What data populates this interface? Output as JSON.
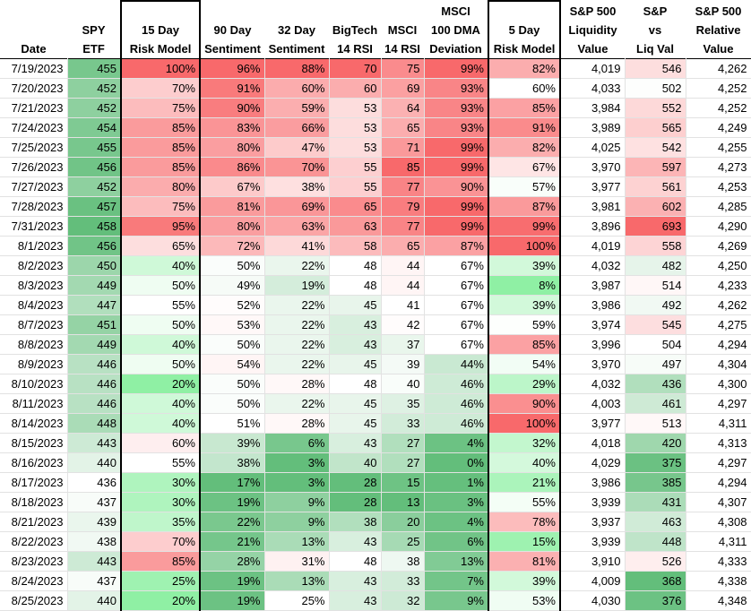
{
  "headers": [
    [
      "",
      "Date"
    ],
    [
      "SPY",
      "ETF"
    ],
    [
      "15 Day",
      "Risk Model"
    ],
    [
      "90 Day",
      "Sentiment"
    ],
    [
      "32 Day",
      "Sentiment"
    ],
    [
      "BigTech",
      "14 RSI"
    ],
    [
      "MSCI",
      "14 RSI"
    ],
    [
      "MSCI",
      "100 DMA",
      "Deviation"
    ],
    [
      "5 Day",
      "Risk Model"
    ],
    [
      "S&P 500",
      "Liquidity",
      "Value"
    ],
    [
      "S&P",
      "vs",
      "Liq Val"
    ],
    [
      "S&P 500",
      "Relative",
      "Value"
    ]
  ],
  "rows": [
    {
      "date": "7/19/2023",
      "spy": 455,
      "r15": "100%",
      "s90": "96%",
      "s32": "88%",
      "bt": 70,
      "msci": 75,
      "dev": "99%",
      "r5": "82%",
      "liq": "4,019",
      "vs": 546,
      "rel": "4,262"
    },
    {
      "date": "7/20/2023",
      "spy": 452,
      "r15": "70%",
      "s90": "91%",
      "s32": "60%",
      "bt": 60,
      "msci": 69,
      "dev": "93%",
      "r5": "60%",
      "liq": "4,033",
      "vs": 502,
      "rel": "4,252"
    },
    {
      "date": "7/21/2023",
      "spy": 452,
      "r15": "75%",
      "s90": "90%",
      "s32": "59%",
      "bt": 53,
      "msci": 64,
      "dev": "93%",
      "r5": "85%",
      "liq": "3,984",
      "vs": 552,
      "rel": "4,252"
    },
    {
      "date": "7/24/2023",
      "spy": 454,
      "r15": "85%",
      "s90": "83%",
      "s32": "66%",
      "bt": 53,
      "msci": 65,
      "dev": "93%",
      "r5": "91%",
      "liq": "3,989",
      "vs": 565,
      "rel": "4,249"
    },
    {
      "date": "7/25/2023",
      "spy": 455,
      "r15": "85%",
      "s90": "80%",
      "s32": "47%",
      "bt": 53,
      "msci": 71,
      "dev": "99%",
      "r5": "82%",
      "liq": "4,025",
      "vs": 542,
      "rel": "4,255"
    },
    {
      "date": "7/26/2023",
      "spy": 456,
      "r15": "85%",
      "s90": "86%",
      "s32": "70%",
      "bt": 55,
      "msci": 85,
      "dev": "99%",
      "r5": "67%",
      "liq": "3,970",
      "vs": 597,
      "rel": "4,273"
    },
    {
      "date": "7/27/2023",
      "spy": 452,
      "r15": "80%",
      "s90": "67%",
      "s32": "38%",
      "bt": 55,
      "msci": 77,
      "dev": "90%",
      "r5": "57%",
      "liq": "3,977",
      "vs": 561,
      "rel": "4,253"
    },
    {
      "date": "7/28/2023",
      "spy": 457,
      "r15": "75%",
      "s90": "81%",
      "s32": "69%",
      "bt": 65,
      "msci": 79,
      "dev": "99%",
      "r5": "87%",
      "liq": "3,981",
      "vs": 602,
      "rel": "4,285"
    },
    {
      "date": "7/31/2023",
      "spy": 458,
      "r15": "95%",
      "s90": "80%",
      "s32": "63%",
      "bt": 63,
      "msci": 77,
      "dev": "99%",
      "r5": "99%",
      "liq": "3,896",
      "vs": 693,
      "rel": "4,290"
    },
    {
      "date": "8/1/2023",
      "spy": 456,
      "r15": "65%",
      "s90": "72%",
      "s32": "41%",
      "bt": 58,
      "msci": 65,
      "dev": "87%",
      "r5": "100%",
      "liq": "4,019",
      "vs": 558,
      "rel": "4,269"
    },
    {
      "date": "8/2/2023",
      "spy": 450,
      "r15": "40%",
      "s90": "50%",
      "s32": "22%",
      "bt": 48,
      "msci": 44,
      "dev": "67%",
      "r5": "39%",
      "liq": "4,032",
      "vs": 482,
      "rel": "4,250"
    },
    {
      "date": "8/3/2023",
      "spy": 449,
      "r15": "50%",
      "s90": "49%",
      "s32": "19%",
      "bt": 48,
      "msci": 44,
      "dev": "67%",
      "r5": "8%",
      "liq": "3,987",
      "vs": 514,
      "rel": "4,233"
    },
    {
      "date": "8/4/2023",
      "spy": 447,
      "r15": "55%",
      "s90": "52%",
      "s32": "22%",
      "bt": 45,
      "msci": 41,
      "dev": "67%",
      "r5": "39%",
      "liq": "3,986",
      "vs": 492,
      "rel": "4,262"
    },
    {
      "date": "8/7/2023",
      "spy": 451,
      "r15": "50%",
      "s90": "53%",
      "s32": "22%",
      "bt": 43,
      "msci": 42,
      "dev": "67%",
      "r5": "59%",
      "liq": "3,974",
      "vs": 545,
      "rel": "4,275"
    },
    {
      "date": "8/8/2023",
      "spy": 449,
      "r15": "40%",
      "s90": "50%",
      "s32": "22%",
      "bt": 43,
      "msci": 37,
      "dev": "67%",
      "r5": "85%",
      "liq": "3,996",
      "vs": 504,
      "rel": "4,294"
    },
    {
      "date": "8/9/2023",
      "spy": 446,
      "r15": "50%",
      "s90": "54%",
      "s32": "22%",
      "bt": 45,
      "msci": 39,
      "dev": "44%",
      "r5": "54%",
      "liq": "3,970",
      "vs": 497,
      "rel": "4,304"
    },
    {
      "date": "8/10/2023",
      "spy": 446,
      "r15": "20%",
      "s90": "50%",
      "s32": "28%",
      "bt": 48,
      "msci": 40,
      "dev": "46%",
      "r5": "29%",
      "liq": "4,032",
      "vs": 436,
      "rel": "4,300"
    },
    {
      "date": "8/11/2023",
      "spy": 446,
      "r15": "40%",
      "s90": "50%",
      "s32": "22%",
      "bt": 45,
      "msci": 35,
      "dev": "46%",
      "r5": "90%",
      "liq": "4,003",
      "vs": 461,
      "rel": "4,297"
    },
    {
      "date": "8/14/2023",
      "spy": 448,
      "r15": "40%",
      "s90": "51%",
      "s32": "28%",
      "bt": 45,
      "msci": 33,
      "dev": "46%",
      "r5": "100%",
      "liq": "3,977",
      "vs": 513,
      "rel": "4,311"
    },
    {
      "date": "8/15/2023",
      "spy": 443,
      "r15": "60%",
      "s90": "39%",
      "s32": "6%",
      "bt": 43,
      "msci": 27,
      "dev": "4%",
      "r5": "32%",
      "liq": "4,018",
      "vs": 420,
      "rel": "4,313"
    },
    {
      "date": "8/16/2023",
      "spy": 440,
      "r15": "55%",
      "s90": "38%",
      "s32": "3%",
      "bt": 40,
      "msci": 27,
      "dev": "0%",
      "r5": "40%",
      "liq": "4,029",
      "vs": 375,
      "rel": "4,297"
    },
    {
      "date": "8/17/2023",
      "spy": 436,
      "r15": "30%",
      "s90": "17%",
      "s32": "3%",
      "bt": 28,
      "msci": 15,
      "dev": "1%",
      "r5": "21%",
      "liq": "3,986",
      "vs": 385,
      "rel": "4,294"
    },
    {
      "date": "8/18/2023",
      "spy": 437,
      "r15": "30%",
      "s90": "19%",
      "s32": "9%",
      "bt": 28,
      "msci": 13,
      "dev": "3%",
      "r5": "55%",
      "liq": "3,939",
      "vs": 431,
      "rel": "4,307"
    },
    {
      "date": "8/21/2023",
      "spy": 439,
      "r15": "35%",
      "s90": "22%",
      "s32": "9%",
      "bt": 38,
      "msci": 20,
      "dev": "4%",
      "r5": "78%",
      "liq": "3,937",
      "vs": 463,
      "rel": "4,308"
    },
    {
      "date": "8/22/2023",
      "spy": 438,
      "r15": "70%",
      "s90": "21%",
      "s32": "13%",
      "bt": 43,
      "msci": 25,
      "dev": "6%",
      "r5": "15%",
      "liq": "3,939",
      "vs": 448,
      "rel": "4,311"
    },
    {
      "date": "8/23/2023",
      "spy": 443,
      "r15": "85%",
      "s90": "28%",
      "s32": "31%",
      "bt": 48,
      "msci": 38,
      "dev": "13%",
      "r5": "81%",
      "liq": "3,910",
      "vs": 526,
      "rel": "4,333"
    },
    {
      "date": "8/24/2023",
      "spy": 437,
      "r15": "25%",
      "s90": "19%",
      "s32": "13%",
      "bt": 43,
      "msci": 33,
      "dev": "7%",
      "r5": "39%",
      "liq": "4,009",
      "vs": 368,
      "rel": "4,338"
    },
    {
      "date": "8/25/2023",
      "spy": 440,
      "r15": "20%",
      "s90": "19%",
      "s32": "25%",
      "bt": 43,
      "msci": 32,
      "dev": "9%",
      "r5": "53%",
      "liq": "4,030",
      "vs": 376,
      "rel": "4,348"
    }
  ],
  "colors": {
    "red_strong": "#f8696b",
    "red_light": "#fde2e3",
    "green_strong": "#63be7b",
    "green_light": "#e6f4ea",
    "green_bright": "#8ff0a4",
    "white": "#ffffff"
  }
}
